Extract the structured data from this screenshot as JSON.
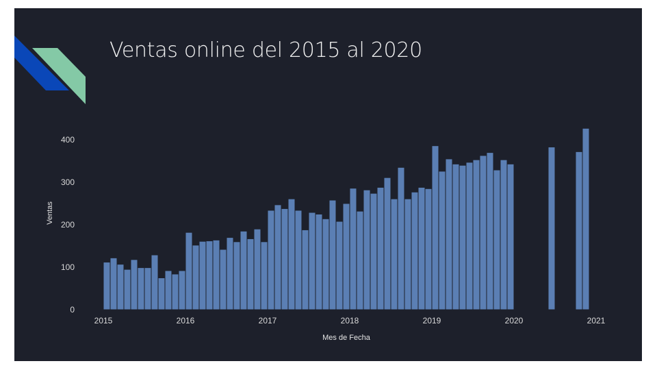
{
  "slide": {
    "title": "Ventas online del 2015 al 2020",
    "background": "#1d202b",
    "accent_blue": "#0a47b8",
    "accent_green": "#84c9a6"
  },
  "chart_data": {
    "type": "bar",
    "xlabel": "Mes de Fecha",
    "ylabel": "Ventas",
    "ylim": [
      0,
      420
    ],
    "y_ticks": [
      0,
      100,
      200,
      300,
      400
    ],
    "x_ticks": [
      "2015",
      "2016",
      "2017",
      "2018",
      "2019",
      "2020",
      "2021"
    ],
    "bar_color": "#5b7fb4",
    "grid": false,
    "series": [
      {
        "x": [
          "2015-01",
          "2015-02",
          "2015-03",
          "2015-04",
          "2015-05",
          "2015-06",
          "2015-07",
          "2015-08",
          "2015-09",
          "2015-10",
          "2015-11",
          "2015-12",
          "2016-01",
          "2016-02",
          "2016-03",
          "2016-04",
          "2016-05",
          "2016-06",
          "2016-07",
          "2016-08",
          "2016-09",
          "2016-10",
          "2016-11",
          "2016-12",
          "2017-01",
          "2017-02",
          "2017-03",
          "2017-04",
          "2017-05",
          "2017-06",
          "2017-07",
          "2017-08",
          "2017-09",
          "2017-10",
          "2017-11",
          "2017-12",
          "2018-01",
          "2018-02",
          "2018-03",
          "2018-04",
          "2018-05",
          "2018-06",
          "2018-07",
          "2018-08",
          "2018-09",
          "2018-10",
          "2018-11",
          "2018-12",
          "2019-01",
          "2019-02",
          "2019-03",
          "2019-04",
          "2019-05",
          "2019-06",
          "2019-07",
          "2019-08",
          "2019-09",
          "2019-10",
          "2019-11",
          "2019-12",
          "2020-06",
          "2020-10",
          "2020-11"
        ],
        "values": [
          112,
          122,
          107,
          95,
          118,
          99,
          99,
          129,
          75,
          92,
          84,
          92,
          182,
          152,
          161,
          162,
          164,
          142,
          170,
          160,
          185,
          167,
          190,
          160,
          234,
          247,
          238,
          261,
          234,
          188,
          229,
          225,
          214,
          258,
          208,
          250,
          286,
          232,
          282,
          274,
          288,
          311,
          261,
          335,
          261,
          277,
          288,
          285,
          386,
          326,
          355,
          343,
          340,
          347,
          353,
          363,
          370,
          329,
          353,
          343,
          383,
          372,
          427
        ]
      }
    ]
  }
}
